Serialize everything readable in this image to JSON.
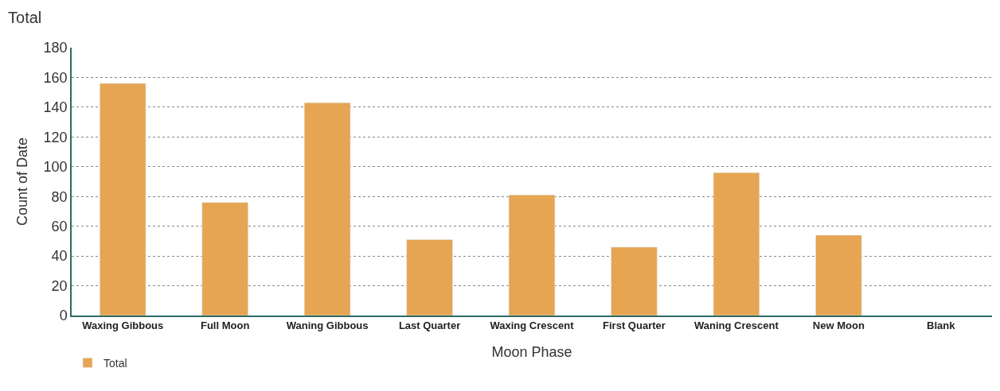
{
  "chart_data": {
    "type": "bar",
    "title": "Total",
    "xlabel": "Moon Phase",
    "ylabel": "Count of Date",
    "categories": [
      "Waxing Gibbous",
      "Full Moon",
      "Waning Gibbous",
      "Last Quarter",
      "Waxing Crescent",
      "First Quarter",
      "Waning Crescent",
      "New Moon",
      "Blank"
    ],
    "series": [
      {
        "name": "Total",
        "color": "#e5a553",
        "values": [
          156,
          76,
          143,
          51,
          81,
          46,
          96,
          54,
          null
        ]
      }
    ],
    "ylim": [
      0,
      180
    ],
    "yticks": [
      0,
      20,
      40,
      60,
      80,
      100,
      120,
      140,
      160,
      180
    ],
    "grid": "y",
    "legend": "bottom left"
  }
}
